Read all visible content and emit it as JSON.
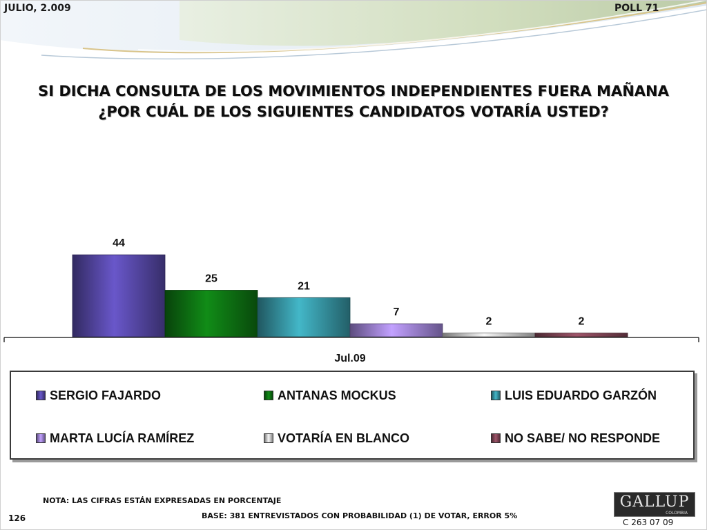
{
  "header": {
    "date": "JULIO, 2.009",
    "poll": "POLL 71"
  },
  "title_line1": "SI DICHA CONSULTA DE LOS MOVIMIENTOS INDEPENDIENTES FUERA MAÑANA",
  "title_line2": "¿POR CUÁL DE LOS SIGUIENTES CANDIDATOS VOTARÍA USTED?",
  "chart_data": {
    "type": "bar",
    "title": "SI DICHA CONSULTA DE LOS MOVIMIENTOS INDEPENDIENTES FUERA MAÑANA ¿POR CUÁL DE LOS SIGUIENTES CANDIDATOS VOTARÍA USTED?",
    "categories": [
      "Jul.09"
    ],
    "series": [
      {
        "name": "SERGIO FAJARDO",
        "values": [
          44
        ],
        "color": "#5b4cb0"
      },
      {
        "name": "ANTANAS MOCKUS",
        "values": [
          25
        ],
        "color": "#0f7a14"
      },
      {
        "name": "LUIS EDUARDO GARZÓN",
        "values": [
          21
        ],
        "color": "#3a9fae"
      },
      {
        "name": "MARTA LUCÍA RAMÍREZ",
        "values": [
          7
        ],
        "color": "#a98ce6"
      },
      {
        "name": "VOTARÍA EN BLANCO",
        "values": [
          2
        ],
        "color": "#d8d8d8"
      },
      {
        "name": "NO SABE/ NO RESPONDE",
        "values": [
          2
        ],
        "color": "#8a4a5c"
      }
    ],
    "xlabel": "",
    "ylabel": "",
    "ylim": [
      0,
      50
    ],
    "grid": false,
    "legend_position": "bottom"
  },
  "footer": {
    "note": "NOTA: LAS CIFRAS ESTÁN EXPRESADAS EN PORCENTAJE",
    "base": "BASE:  381 ENTREVISTADOS CON PROBABILIDAD (1) DE VOTAR, ERROR 5%",
    "page": "126",
    "logo": "GALLUP",
    "logo_sub": "COLOMBIA",
    "code": "C 263 07 09"
  }
}
